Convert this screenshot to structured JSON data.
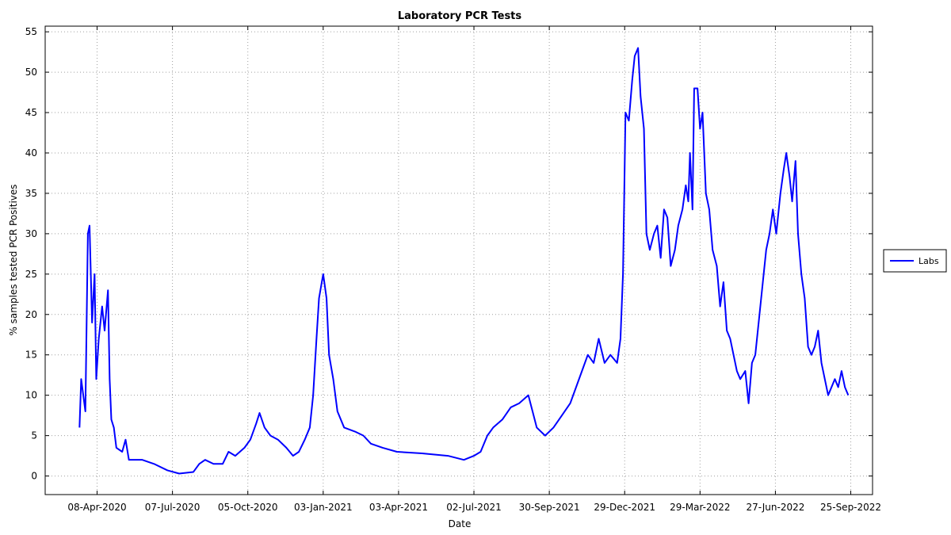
{
  "chart_data": {
    "type": "line",
    "title": "Laboratory PCR Tests",
    "x_label": "Date",
    "y_label": "% samples tested PCR Positives",
    "x": [
      "2020-03-18",
      "2020-03-20",
      "2020-03-25",
      "2020-03-28",
      "2020-03-30",
      "2020-04-02",
      "2020-04-05",
      "2020-04-07",
      "2020-04-10",
      "2020-04-14",
      "2020-04-17",
      "2020-04-21",
      "2020-04-23",
      "2020-04-25",
      "2020-04-28",
      "2020-05-01",
      "2020-05-08",
      "2020-05-12",
      "2020-05-16",
      "2020-06-01",
      "2020-06-15",
      "2020-07-01",
      "2020-07-15",
      "2020-08-01",
      "2020-08-08",
      "2020-08-15",
      "2020-08-25",
      "2020-09-05",
      "2020-09-12",
      "2020-09-20",
      "2020-10-01",
      "2020-10-08",
      "2020-10-15",
      "2020-10-19",
      "2020-10-25",
      "2020-11-01",
      "2020-11-10",
      "2020-11-20",
      "2020-11-28",
      "2020-12-05",
      "2020-12-12",
      "2020-12-18",
      "2020-12-22",
      "2020-12-26",
      "2020-12-29",
      "2021-01-03",
      "2021-01-07",
      "2021-01-10",
      "2021-01-15",
      "2021-01-20",
      "2021-01-28",
      "2021-02-10",
      "2021-02-20",
      "2021-03-01",
      "2021-03-15",
      "2021-04-01",
      "2021-05-01",
      "2021-06-01",
      "2021-06-20",
      "2021-07-02",
      "2021-07-10",
      "2021-07-18",
      "2021-07-25",
      "2021-08-05",
      "2021-08-15",
      "2021-08-25",
      "2021-09-05",
      "2021-09-10",
      "2021-09-15",
      "2021-09-25",
      "2021-10-05",
      "2021-10-15",
      "2021-10-25",
      "2021-11-01",
      "2021-11-08",
      "2021-11-15",
      "2021-11-22",
      "2021-11-28",
      "2021-12-05",
      "2021-12-12",
      "2021-12-20",
      "2021-12-24",
      "2021-12-27",
      "2021-12-30",
      "2022-01-03",
      "2022-01-07",
      "2022-01-10",
      "2022-01-14",
      "2022-01-17",
      "2022-01-21",
      "2022-01-24",
      "2022-01-28",
      "2022-02-02",
      "2022-02-06",
      "2022-02-10",
      "2022-02-14",
      "2022-02-18",
      "2022-02-22",
      "2022-02-27",
      "2022-03-03",
      "2022-03-08",
      "2022-03-12",
      "2022-03-15",
      "2022-03-17",
      "2022-03-20",
      "2022-03-22",
      "2022-03-26",
      "2022-03-29",
      "2022-04-01",
      "2022-04-05",
      "2022-04-09",
      "2022-04-13",
      "2022-04-18",
      "2022-04-22",
      "2022-04-26",
      "2022-04-30",
      "2022-05-04",
      "2022-05-08",
      "2022-05-12",
      "2022-05-16",
      "2022-05-22",
      "2022-05-26",
      "2022-05-30",
      "2022-06-03",
      "2022-06-08",
      "2022-06-12",
      "2022-06-16",
      "2022-06-20",
      "2022-06-24",
      "2022-06-28",
      "2022-07-03",
      "2022-07-07",
      "2022-07-10",
      "2022-07-14",
      "2022-07-17",
      "2022-07-21",
      "2022-07-24",
      "2022-07-28",
      "2022-08-01",
      "2022-08-05",
      "2022-08-09",
      "2022-08-13",
      "2022-08-17",
      "2022-08-21",
      "2022-08-25",
      "2022-08-29",
      "2022-09-02",
      "2022-09-06",
      "2022-09-10",
      "2022-09-14",
      "2022-09-18",
      "2022-09-22"
    ],
    "series": [
      {
        "name": "Labs",
        "color": "#0000ff",
        "values": [
          6,
          12,
          8,
          30,
          31,
          19,
          25,
          12,
          17,
          21,
          18,
          23,
          12,
          7,
          6,
          3.5,
          3,
          4.5,
          2,
          2,
          1.5,
          0.7,
          0.3,
          0.5,
          1.5,
          2,
          1.5,
          1.5,
          3,
          2.5,
          3.5,
          4.5,
          6.5,
          7.8,
          6,
          5,
          4.5,
          3.5,
          2.5,
          3,
          4.5,
          6,
          10,
          17,
          22,
          25,
          22,
          15,
          12,
          8,
          6,
          5.5,
          5,
          4,
          3.5,
          3,
          2.8,
          2.5,
          2,
          2.5,
          3,
          5,
          6,
          7,
          8.5,
          9,
          10,
          8,
          6,
          5,
          6,
          7.5,
          9,
          11,
          13,
          15,
          14,
          17,
          14,
          15,
          14,
          17,
          25,
          45,
          44,
          49,
          52,
          53,
          47,
          43,
          30,
          28,
          30,
          31,
          27,
          33,
          32,
          26,
          28,
          31,
          33,
          36,
          34,
          40,
          33,
          48,
          48,
          43,
          45,
          35,
          33,
          28,
          26,
          21,
          24,
          18,
          17,
          15,
          13,
          12,
          13,
          9,
          14,
          15,
          20,
          24,
          28,
          30,
          33,
          30,
          35,
          38,
          40,
          37,
          34,
          39,
          30,
          25,
          22,
          16,
          15,
          16,
          18,
          14,
          12,
          10,
          11,
          12,
          11,
          13,
          11,
          10
        ]
      }
    ],
    "xlim": [
      "2020-02-06",
      "2022-10-21"
    ],
    "xticks": [
      {
        "value": "2020-04-08",
        "label": "08-Apr-2020"
      },
      {
        "value": "2020-07-07",
        "label": "07-Jul-2020"
      },
      {
        "value": "2020-10-05",
        "label": "05-Oct-2020"
      },
      {
        "value": "2021-01-03",
        "label": "03-Jan-2021"
      },
      {
        "value": "2021-04-03",
        "label": "03-Apr-2021"
      },
      {
        "value": "2021-07-02",
        "label": "02-Jul-2021"
      },
      {
        "value": "2021-09-30",
        "label": "30-Sep-2021"
      },
      {
        "value": "2021-12-29",
        "label": "29-Dec-2021"
      },
      {
        "value": "2022-03-29",
        "label": "29-Mar-2022"
      },
      {
        "value": "2022-06-27",
        "label": "27-Jun-2022"
      },
      {
        "value": "2022-09-25",
        "label": "25-Sep-2022"
      }
    ],
    "ylim": [
      -2.3,
      55.7
    ],
    "yticks": [
      0,
      5,
      10,
      15,
      20,
      25,
      30,
      35,
      40,
      45,
      50,
      55
    ],
    "grid": true,
    "legend": "right"
  }
}
